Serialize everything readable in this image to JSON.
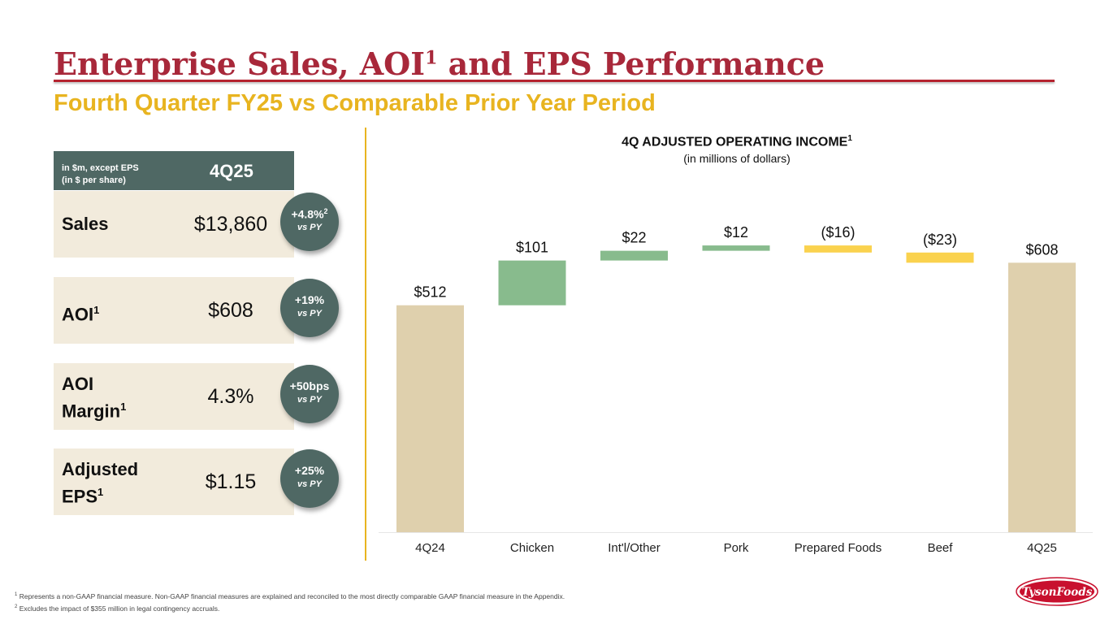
{
  "header": {
    "title": "Enterprise Sales, AOI",
    "title_sup": "1",
    "title_rest": " and EPS Performance",
    "subtitle": "Fourth Quarter FY25 vs Comparable Prior Year Period"
  },
  "table": {
    "unit_line1": "in $m, except EPS",
    "unit_line2": "(in $ per share)",
    "column": "4Q25",
    "rows": [
      {
        "label": "Sales",
        "label_sup": "",
        "value": "$13,860",
        "badge_main": "+4.8%",
        "badge_sup": "2",
        "badge_sub": "vs PY"
      },
      {
        "label": "AOI",
        "label_sup": "1",
        "value": "$608",
        "badge_main": "+19%",
        "badge_sup": "",
        "badge_sub": "vs PY"
      },
      {
        "label_line1": "AOI",
        "label": "Margin",
        "label_sup": "1",
        "value": "4.3%",
        "badge_main": "+50bps",
        "badge_sup": "",
        "badge_sub": "vs PY"
      },
      {
        "label_line1": "Adjusted",
        "label": "EPS",
        "label_sup": "1",
        "value": "$1.15",
        "badge_main": "+25%",
        "badge_sup": "",
        "badge_sub": "vs PY"
      }
    ]
  },
  "chart_data": {
    "type": "bar",
    "subtype": "waterfall",
    "title": "4Q ADJUSTED OPERATING INCOME",
    "title_sup": "1",
    "subtitle": "(in millions of dollars)",
    "categories": [
      "4Q24",
      "Chicken",
      "Int'l/Other",
      "Pork",
      "Prepared Foods",
      "Beef",
      "4Q25"
    ],
    "values": [
      512,
      101,
      22,
      12,
      -16,
      -23,
      608
    ],
    "kinds": [
      "total",
      "delta",
      "delta",
      "delta",
      "delta",
      "delta",
      "total"
    ],
    "labels": [
      "$512",
      "$101",
      "$22",
      "$12",
      "($16)",
      "($23)",
      "$608"
    ],
    "ylim": [
      0,
      660
    ],
    "grid": false,
    "colors": {
      "total": "#dfd0ad",
      "increase": "#88bb8d",
      "decrease": "#fad24e"
    }
  },
  "footnotes": [
    {
      "sup": "1",
      "text": " Represents a non-GAAP financial measure. Non-GAAP financial measures are explained and reconciled to the most directly comparable GAAP financial measure in the Appendix."
    },
    {
      "sup": "2",
      "text": " Excludes the  impact of $355 million in legal contingency accruals."
    }
  ],
  "logo": {
    "text": "TysonFoods"
  },
  "colors": {
    "brand_red": "#a8283a",
    "accent_yellow": "#e8b420",
    "panel_green": "#4f6864",
    "row_beige": "#f2ebdc"
  }
}
